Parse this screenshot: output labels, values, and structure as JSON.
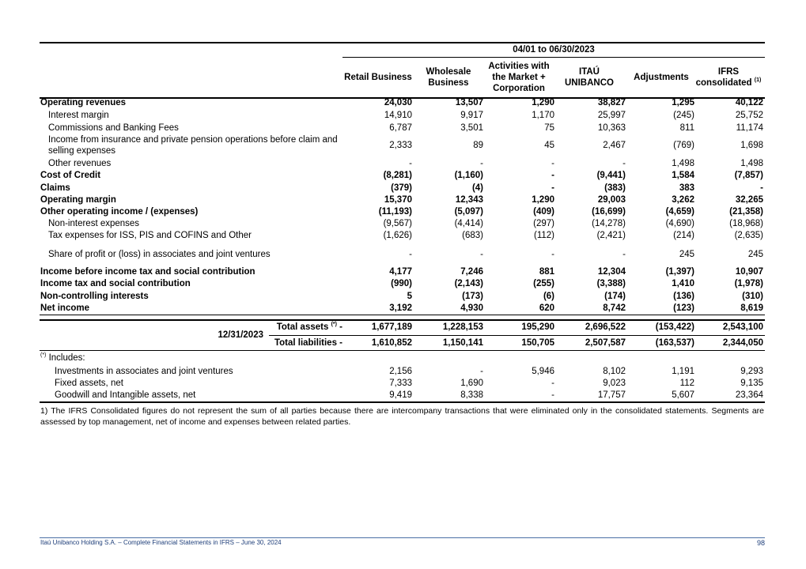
{
  "header": {
    "period": "04/01 to 06/30/2023",
    "columns": [
      {
        "label": "Retail Business"
      },
      {
        "label": "Wholesale Business"
      },
      {
        "label": "Activities with the Market + Corporation"
      },
      {
        "label": "ITAÚ UNIBANCO"
      },
      {
        "label": "Adjustments"
      },
      {
        "label": "IFRS consolidated",
        "note": "(1)"
      }
    ]
  },
  "table": {
    "rows": [
      {
        "label": "Operating revenues",
        "bold": true,
        "values": [
          "24,030",
          "13,507",
          "1,290",
          "38,827",
          "1,295",
          "40,122"
        ]
      },
      {
        "label": "Interest margin",
        "bold": false,
        "values": [
          "14,910",
          "9,917",
          "1,170",
          "25,997",
          "(245)",
          "25,752"
        ]
      },
      {
        "label": "Commissions and Banking Fees",
        "bold": false,
        "values": [
          "6,787",
          "3,501",
          "75",
          "10,363",
          "811",
          "11,174"
        ]
      },
      {
        "label": "Income from insurance and private pension operations before claim and selling expenses",
        "bold": false,
        "values": [
          "2,333",
          "89",
          "45",
          "2,467",
          "(769)",
          "1,698"
        ]
      },
      {
        "label": "Other revenues",
        "bold": false,
        "values": [
          "-",
          "-",
          "-",
          "-",
          "1,498",
          "1,498"
        ]
      },
      {
        "label": "Cost of Credit",
        "bold": true,
        "values": [
          "(8,281)",
          "(1,160)",
          "-",
          "(9,441)",
          "1,584",
          "(7,857)"
        ]
      },
      {
        "label": "Claims",
        "bold": true,
        "values": [
          "(379)",
          "(4)",
          "-",
          "(383)",
          "383",
          "-"
        ]
      },
      {
        "label": "Operating margin",
        "bold": true,
        "values": [
          "15,370",
          "12,343",
          "1,290",
          "29,003",
          "3,262",
          "32,265"
        ]
      },
      {
        "label": "Other operating income / (expenses)",
        "bold": true,
        "values": [
          "(11,193)",
          "(5,097)",
          "(409)",
          "(16,699)",
          "(4,659)",
          "(21,358)"
        ]
      },
      {
        "label": "Non-interest expenses",
        "bold": false,
        "values": [
          "(9,567)",
          "(4,414)",
          "(297)",
          "(14,278)",
          "(4,690)",
          "(18,968)"
        ]
      },
      {
        "label": "Tax expenses for ISS, PIS and COFINS and Other",
        "bold": false,
        "values": [
          "(1,626)",
          "(683)",
          "(112)",
          "(2,421)",
          "(214)",
          "(2,635)"
        ]
      },
      {
        "label": "Share of profit or (loss) in associates and joint ventures",
        "bold": false,
        "values": [
          "-",
          "-",
          "-",
          "-",
          "245",
          "245"
        ]
      },
      {
        "label": "Income before income tax and social contribution",
        "bold": true,
        "values": [
          "4,177",
          "7,246",
          "881",
          "12,304",
          "(1,397)",
          "10,907"
        ]
      },
      {
        "label": "Income tax and social contribution",
        "bold": true,
        "values": [
          "(990)",
          "(2,143)",
          "(255)",
          "(3,388)",
          "1,410",
          "(1,978)"
        ]
      },
      {
        "label": "Non-controlling interests",
        "bold": true,
        "values": [
          "5",
          "(173)",
          "(6)",
          "(174)",
          "(136)",
          "(310)"
        ]
      },
      {
        "label": "Net income",
        "bold": true,
        "values": [
          "3,192",
          "4,930",
          "620",
          "8,742",
          "(123)",
          "8,619"
        ]
      }
    ]
  },
  "balance": {
    "date": "12/31/2023",
    "rows": [
      {
        "label": "Total assets",
        "note": "(*)",
        "end": "-",
        "values": [
          "1,677,189",
          "1,228,153",
          "195,290",
          "2,696,522",
          "(153,422)",
          "2,543,100"
        ]
      },
      {
        "label": "Total liabilities -",
        "values": [
          "1,610,852",
          "1,150,141",
          "150,705",
          "2,507,587",
          "(163,537)",
          "2,344,050"
        ]
      }
    ]
  },
  "includes": {
    "note": "(*)",
    "label": "Includes:",
    "rows": [
      {
        "label": "Investments in associates and joint ventures",
        "values": [
          "2,156",
          "-",
          "5,946",
          "8,102",
          "1,191",
          "9,293"
        ]
      },
      {
        "label": "Fixed assets, net",
        "values": [
          "7,333",
          "1,690",
          "-",
          "9,023",
          "112",
          "9,135"
        ]
      },
      {
        "label": "Goodwill and Intangible assets, net",
        "values": [
          "9,419",
          "8,338",
          "-",
          "17,757",
          "5,607",
          "23,364"
        ]
      }
    ]
  },
  "footnote": "1) The IFRS Consolidated figures do not represent the sum of all parties because there are intercompany transactions that were eliminated only in the consolidated statements. Segments are assessed by top management, net of income and expenses between related parties.",
  "footer": {
    "text": "Itaú Unibanco Holding S.A. – Complete Financial Statements in IFRS – June 30, 2024",
    "page": "98"
  }
}
